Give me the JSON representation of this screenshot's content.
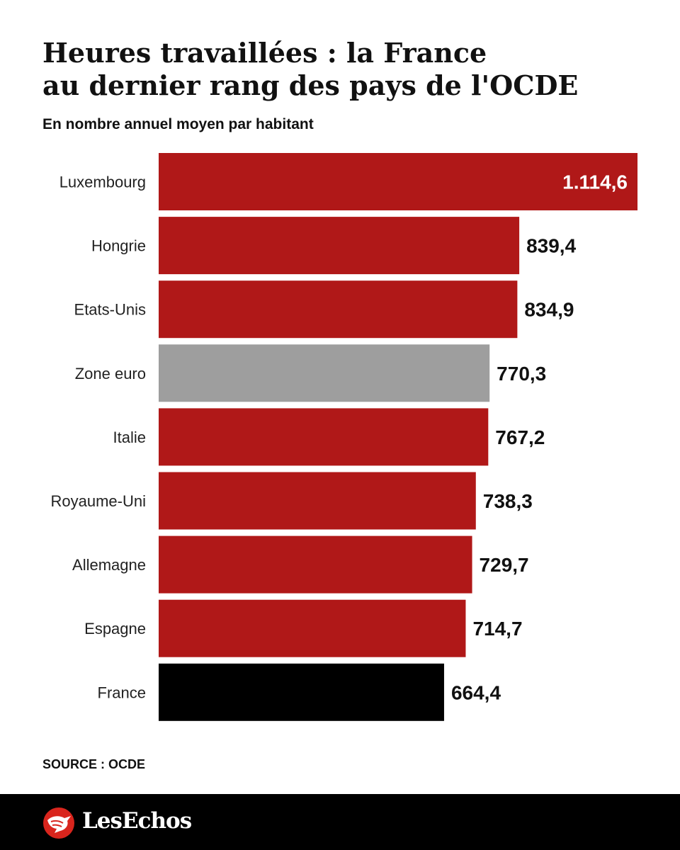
{
  "title_line1": "Heures travaillées : la France",
  "title_line2": "au dernier rang des pays de l'OCDE",
  "subtitle": "En nombre annuel moyen par habitant",
  "source": "SOURCE : OCDE",
  "brand": {
    "name": "LesEchos",
    "logo_icon": "les-echos-bird-icon"
  },
  "colors": {
    "country": "#b01818",
    "zone_euro": "#9e9e9e",
    "france": "#000000",
    "label_inside": "#ffffff",
    "label_outside": "#111111",
    "category_text": "#222222"
  },
  "chart_data": {
    "type": "bar",
    "orientation": "horizontal",
    "title": "Heures travaillées : la France au dernier rang des pays de l'OCDE",
    "subtitle": "En nombre annuel moyen par habitant",
    "categories": [
      "Luxembourg",
      "Hongrie",
      "Etats-Unis",
      "Zone euro",
      "Italie",
      "Royaume-Uni",
      "Allemagne",
      "Espagne",
      "France"
    ],
    "values": [
      1114.6,
      839.4,
      834.9,
      770.3,
      767.2,
      738.3,
      729.7,
      714.7,
      664.4
    ],
    "value_labels": [
      "1.114,6",
      "839,4",
      "834,9",
      "770,3",
      "767,2",
      "738,3",
      "729,7",
      "714,7",
      "664,4"
    ],
    "highlight": {
      "Zone euro": "zone_euro",
      "France": "france"
    },
    "xlim": [
      0,
      1114.6
    ],
    "grid": false,
    "legend": "none",
    "source": "SOURCE : OCDE"
  }
}
